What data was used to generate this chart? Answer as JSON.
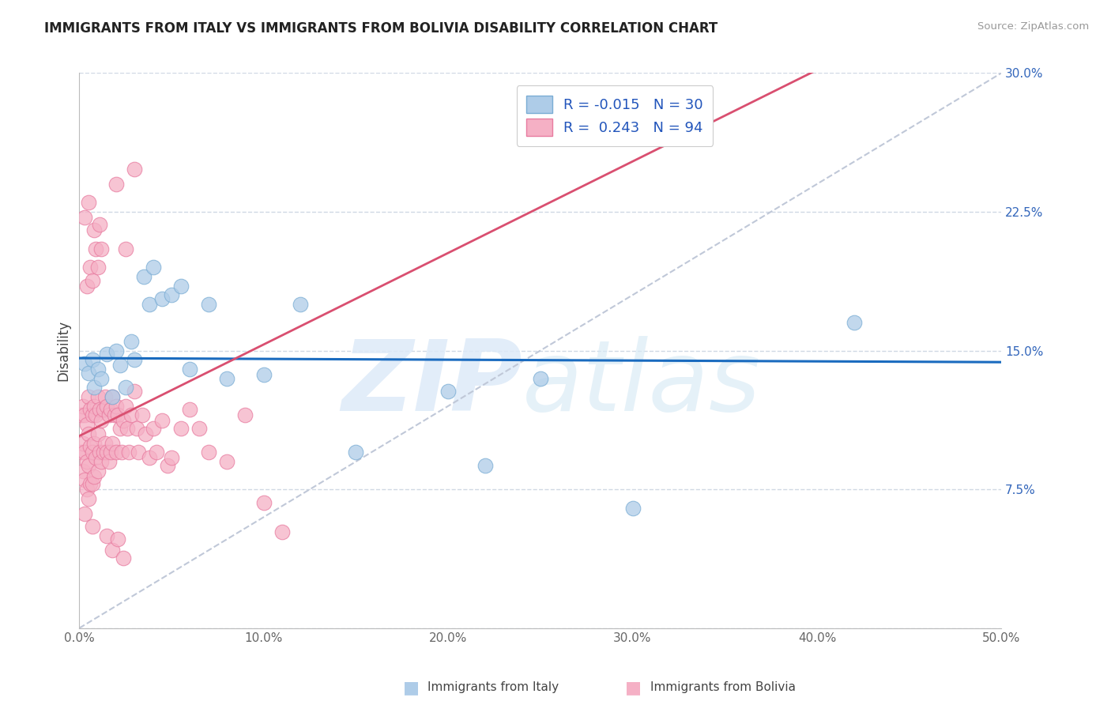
{
  "title": "IMMIGRANTS FROM ITALY VS IMMIGRANTS FROM BOLIVIA DISABILITY CORRELATION CHART",
  "source": "Source: ZipAtlas.com",
  "ylabel": "Disability",
  "xlim": [
    0.0,
    0.5
  ],
  "ylim": [
    0.0,
    0.3
  ],
  "xticks": [
    0.0,
    0.1,
    0.2,
    0.3,
    0.4,
    0.5
  ],
  "xtick_labels": [
    "0.0%",
    "10.0%",
    "20.0%",
    "30.0%",
    "40.0%",
    "50.0%"
  ],
  "yticks": [
    0.0,
    0.075,
    0.15,
    0.225,
    0.3
  ],
  "ytick_labels": [
    "",
    "7.5%",
    "15.0%",
    "22.5%",
    "30.0%"
  ],
  "italy_color": "#aecce8",
  "bolivia_color": "#f5b0c5",
  "italy_edge": "#7aadd4",
  "bolivia_edge": "#e87ca0",
  "italy_R": -0.015,
  "italy_N": 30,
  "bolivia_R": 0.243,
  "bolivia_N": 94,
  "italy_trend_color": "#1a6bbf",
  "bolivia_trend_color": "#d94f70",
  "diag_color": "#c0c8d8",
  "watermark": "ZIPatlas",
  "background": "#ffffff",
  "grid_color": "#d0d8e4",
  "legend_italy": "R = -0.015   N = 30",
  "legend_bolivia": "R =  0.243   N = 94",
  "italy_points_x": [
    0.003,
    0.005,
    0.007,
    0.008,
    0.01,
    0.012,
    0.015,
    0.018,
    0.02,
    0.022,
    0.025,
    0.028,
    0.03,
    0.035,
    0.038,
    0.04,
    0.045,
    0.05,
    0.055,
    0.06,
    0.07,
    0.08,
    0.1,
    0.12,
    0.15,
    0.2,
    0.22,
    0.25,
    0.3,
    0.42
  ],
  "italy_points_y": [
    0.143,
    0.138,
    0.145,
    0.13,
    0.14,
    0.135,
    0.148,
    0.125,
    0.15,
    0.142,
    0.13,
    0.155,
    0.145,
    0.19,
    0.175,
    0.195,
    0.178,
    0.18,
    0.185,
    0.14,
    0.175,
    0.135,
    0.137,
    0.175,
    0.095,
    0.128,
    0.088,
    0.135,
    0.065,
    0.165
  ],
  "bolivia_points_x": [
    0.001,
    0.001,
    0.002,
    0.002,
    0.002,
    0.003,
    0.003,
    0.003,
    0.004,
    0.004,
    0.004,
    0.005,
    0.005,
    0.005,
    0.005,
    0.006,
    0.006,
    0.006,
    0.007,
    0.007,
    0.007,
    0.008,
    0.008,
    0.008,
    0.009,
    0.009,
    0.01,
    0.01,
    0.01,
    0.011,
    0.011,
    0.012,
    0.012,
    0.013,
    0.013,
    0.014,
    0.014,
    0.015,
    0.015,
    0.016,
    0.016,
    0.017,
    0.017,
    0.018,
    0.018,
    0.019,
    0.02,
    0.02,
    0.021,
    0.022,
    0.023,
    0.024,
    0.025,
    0.026,
    0.027,
    0.028,
    0.03,
    0.031,
    0.032,
    0.034,
    0.036,
    0.038,
    0.04,
    0.042,
    0.045,
    0.048,
    0.05,
    0.055,
    0.06,
    0.065,
    0.07,
    0.08,
    0.09,
    0.1,
    0.11,
    0.02,
    0.025,
    0.03,
    0.003,
    0.004,
    0.005,
    0.006,
    0.007,
    0.008,
    0.009,
    0.01,
    0.011,
    0.012,
    0.015,
    0.018,
    0.021,
    0.024,
    0.003,
    0.007
  ],
  "bolivia_points_y": [
    0.115,
    0.095,
    0.12,
    0.1,
    0.085,
    0.115,
    0.095,
    0.08,
    0.11,
    0.09,
    0.075,
    0.125,
    0.105,
    0.088,
    0.07,
    0.118,
    0.098,
    0.078,
    0.115,
    0.095,
    0.078,
    0.12,
    0.1,
    0.082,
    0.115,
    0.092,
    0.125,
    0.105,
    0.085,
    0.118,
    0.095,
    0.112,
    0.09,
    0.118,
    0.095,
    0.125,
    0.1,
    0.12,
    0.095,
    0.115,
    0.09,
    0.118,
    0.095,
    0.125,
    0.1,
    0.115,
    0.12,
    0.095,
    0.115,
    0.108,
    0.095,
    0.112,
    0.12,
    0.108,
    0.095,
    0.115,
    0.128,
    0.108,
    0.095,
    0.115,
    0.105,
    0.092,
    0.108,
    0.095,
    0.112,
    0.088,
    0.092,
    0.108,
    0.118,
    0.108,
    0.095,
    0.09,
    0.115,
    0.068,
    0.052,
    0.24,
    0.205,
    0.248,
    0.222,
    0.185,
    0.23,
    0.195,
    0.188,
    0.215,
    0.205,
    0.195,
    0.218,
    0.205,
    0.05,
    0.042,
    0.048,
    0.038,
    0.062,
    0.055
  ]
}
